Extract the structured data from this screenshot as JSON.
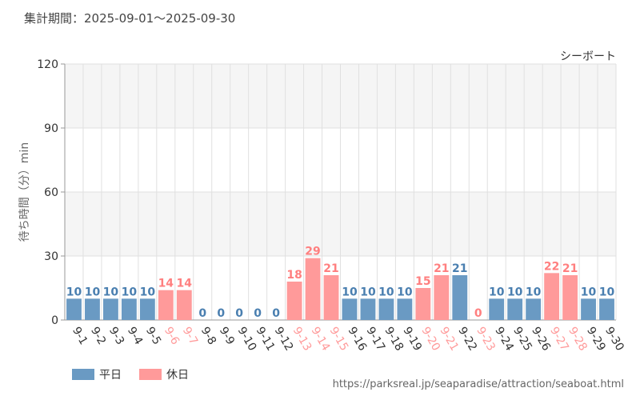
{
  "header": {
    "period_label": "集計期間：2025-09-01～2025-09-30"
  },
  "footer": {
    "source_url": "https://parksreal.jp/seaparadise/attraction/seaboat.html"
  },
  "colors": {
    "weekday": "#6a9ac3",
    "holiday": "#ff9a9a",
    "weekday_text": "#4a7fb0",
    "holiday_text": "#ff7f7f",
    "grid": "#e0e0e0",
    "band": "#f5f5f5"
  },
  "chart_data": {
    "type": "bar",
    "title": "シーボート",
    "ylabel": "待ち時間（分）min",
    "xlabel": "",
    "ylim": [
      0,
      120
    ],
    "yticks": [
      0,
      30,
      60,
      90,
      120
    ],
    "categories": [
      "9-1",
      "9-2",
      "9-3",
      "9-4",
      "9-5",
      "9-6",
      "9-7",
      "9-8",
      "9-9",
      "9-10",
      "9-11",
      "9-12",
      "9-13",
      "9-14",
      "9-15",
      "9-16",
      "9-17",
      "9-18",
      "9-19",
      "9-20",
      "9-21",
      "9-22",
      "9-23",
      "9-24",
      "9-25",
      "9-26",
      "9-27",
      "9-28",
      "9-29",
      "9-30"
    ],
    "values": [
      10,
      10,
      10,
      10,
      10,
      14,
      14,
      0,
      0,
      0,
      0,
      0,
      18,
      29,
      21,
      10,
      10,
      10,
      10,
      15,
      21,
      21,
      0,
      10,
      10,
      10,
      22,
      21,
      10,
      10
    ],
    "day_type": [
      "weekday",
      "weekday",
      "weekday",
      "weekday",
      "weekday",
      "holiday",
      "holiday",
      "weekday",
      "weekday",
      "weekday",
      "weekday",
      "weekday",
      "holiday",
      "holiday",
      "holiday",
      "weekday",
      "weekday",
      "weekday",
      "weekday",
      "holiday",
      "holiday",
      "weekday",
      "holiday",
      "weekday",
      "weekday",
      "weekday",
      "holiday",
      "holiday",
      "weekday",
      "weekday"
    ],
    "legend": [
      {
        "key": "weekday",
        "label": "平日"
      },
      {
        "key": "holiday",
        "label": "休日"
      }
    ],
    "legend_position": "bottom-left"
  }
}
